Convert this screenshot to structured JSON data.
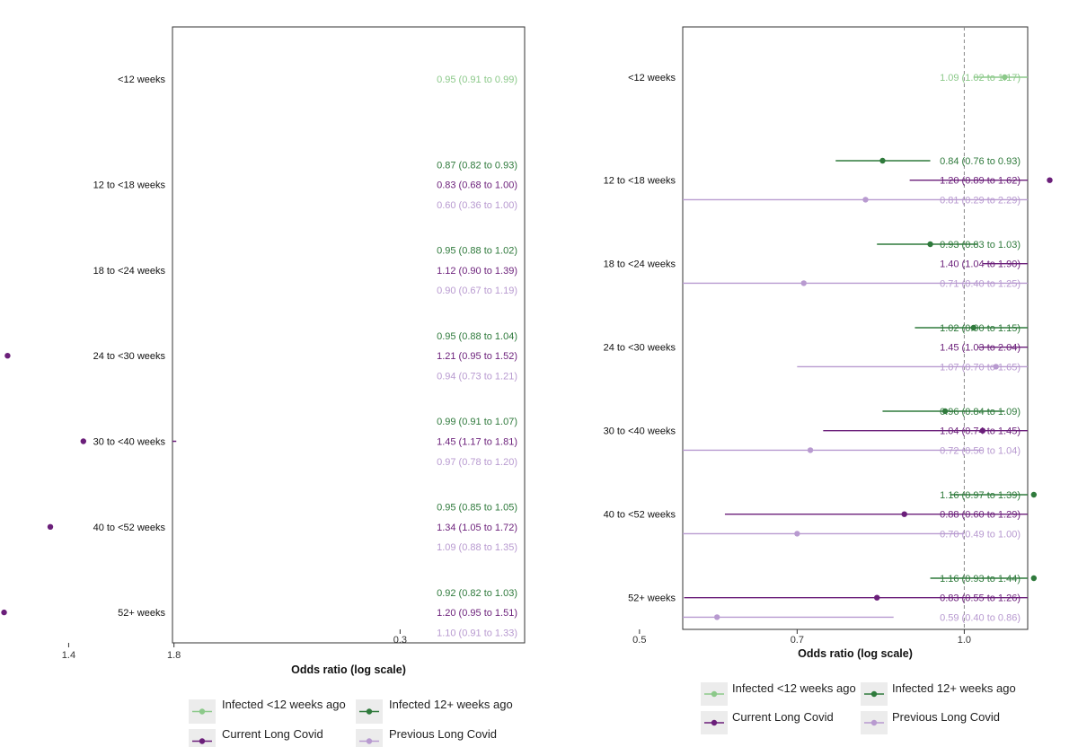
{
  "colors": {
    "Infected <12 weeks ago": "#8cc98a",
    "Infected 12+ weeks ago": "#2f7a3c",
    "Current Long Covid": "#6b1f7a",
    "Previous Long Covid": "#b89ad0"
  },
  "legend": {
    "items": [
      "Infected <12 weeks ago",
      "Infected 12+ weeks ago",
      "Current Long Covid",
      "Previous Long Covid"
    ]
  },
  "chart_data": [
    {
      "type": "forest",
      "xlabel": "Odds ratio (log scale)",
      "log_scale": true,
      "reference_line": 1.0,
      "xlim": [
        0.33,
        2.1
      ],
      "xticks": [
        "0.4",
        "0.6",
        "0.8",
        "1.0",
        "1.4",
        "1.8"
      ],
      "groups": [
        {
          "label": "<12 weeks",
          "rows": [
            {
              "series": "Infected <12 weeks ago",
              "est": 0.95,
              "lo": 0.91,
              "hi": 0.99,
              "text": "0.95 (0.91 to 0.99)"
            }
          ]
        },
        {
          "label": "12 to <18 weeks",
          "rows": [
            {
              "series": "Infected 12+ weeks ago",
              "est": 0.87,
              "lo": 0.82,
              "hi": 0.93,
              "text": "0.87 (0.82 to 0.93)"
            },
            {
              "series": "Current Long Covid",
              "est": 0.83,
              "lo": 0.68,
              "hi": 1.0,
              "text": "0.83 (0.68 to 1.00)"
            },
            {
              "series": "Previous Long Covid",
              "est": 0.6,
              "lo": 0.36,
              "hi": 1.0,
              "text": "0.60 (0.36 to 1.00)"
            }
          ]
        },
        {
          "label": "18 to <24 weeks",
          "rows": [
            {
              "series": "Infected 12+ weeks ago",
              "est": 0.95,
              "lo": 0.88,
              "hi": 1.02,
              "text": "0.95 (0.88 to 1.02)"
            },
            {
              "series": "Current Long Covid",
              "est": 1.12,
              "lo": 0.9,
              "hi": 1.39,
              "text": "1.12 (0.90 to 1.39)"
            },
            {
              "series": "Previous Long Covid",
              "est": 0.9,
              "lo": 0.67,
              "hi": 1.19,
              "text": "0.90 (0.67 to 1.19)"
            }
          ]
        },
        {
          "label": "24 to <30 weeks",
          "rows": [
            {
              "series": "Infected 12+ weeks ago",
              "est": 0.95,
              "lo": 0.88,
              "hi": 1.04,
              "text": "0.95 (0.88 to 1.04)"
            },
            {
              "series": "Current Long Covid",
              "est": 1.21,
              "lo": 0.95,
              "hi": 1.52,
              "text": "1.21 (0.95 to 1.52)"
            },
            {
              "series": "Previous Long Covid",
              "est": 0.94,
              "lo": 0.73,
              "hi": 1.21,
              "text": "0.94 (0.73 to 1.21)"
            }
          ]
        },
        {
          "label": "30 to <40 weeks",
          "rows": [
            {
              "series": "Infected 12+ weeks ago",
              "est": 0.99,
              "lo": 0.91,
              "hi": 1.07,
              "text": "0.99 (0.91 to 1.07)"
            },
            {
              "series": "Current Long Covid",
              "est": 1.45,
              "lo": 1.17,
              "hi": 1.81,
              "text": "1.45 (1.17 to 1.81)"
            },
            {
              "series": "Previous Long Covid",
              "est": 0.97,
              "lo": 0.78,
              "hi": 1.2,
              "text": "0.97 (0.78 to 1.20)"
            }
          ]
        },
        {
          "label": "40 to <52 weeks",
          "rows": [
            {
              "series": "Infected 12+ weeks ago",
              "est": 0.95,
              "lo": 0.85,
              "hi": 1.05,
              "text": "0.95 (0.85 to 1.05)"
            },
            {
              "series": "Current Long Covid",
              "est": 1.34,
              "lo": 1.05,
              "hi": 1.72,
              "text": "1.34 (1.05 to 1.72)"
            },
            {
              "series": "Previous Long Covid",
              "est": 1.09,
              "lo": 0.88,
              "hi": 1.35,
              "text": "1.09 (0.88 to 1.35)"
            }
          ]
        },
        {
          "label": "52+ weeks",
          "rows": [
            {
              "series": "Infected 12+ weeks ago",
              "est": 0.92,
              "lo": 0.82,
              "hi": 1.03,
              "text": "0.92 (0.82 to 1.03)"
            },
            {
              "series": "Current Long Covid",
              "est": 1.2,
              "lo": 0.95,
              "hi": 1.51,
              "text": "1.20 (0.95 to 1.51)"
            },
            {
              "series": "Previous Long Covid",
              "est": 1.1,
              "lo": 0.91,
              "hi": 1.33,
              "text": "1.10 (0.91 to 1.33)"
            }
          ]
        }
      ]
    },
    {
      "type": "forest",
      "xlabel": "Odds ratio (log scale)",
      "log_scale": true,
      "reference_line": 1.0,
      "xlim": [
        0.28,
        2.5
      ],
      "xticks": [
        "0.3",
        "0.5",
        "0.7",
        "1.0",
        "1.6",
        "2.3"
      ],
      "groups": [
        {
          "label": "<12 weeks",
          "rows": [
            {
              "series": "Infected <12 weeks ago",
              "est": 1.09,
              "lo": 1.02,
              "hi": 1.17,
              "text": "1.09 (1.02 to 1.17)"
            }
          ]
        },
        {
          "label": "12 to <18 weeks",
          "rows": [
            {
              "series": "Infected 12+ weeks ago",
              "est": 0.84,
              "lo": 0.76,
              "hi": 0.93,
              "text": "0.84 (0.76 to 0.93)"
            },
            {
              "series": "Current Long Covid",
              "est": 1.2,
              "lo": 0.89,
              "hi": 1.62,
              "text": "1.20 (0.89 to 1.62)"
            },
            {
              "series": "Previous Long Covid",
              "est": 0.81,
              "lo": 0.29,
              "hi": 2.29,
              "text": "0.81 (0.29 to 2.29)"
            }
          ]
        },
        {
          "label": "18 to <24 weeks",
          "rows": [
            {
              "series": "Infected 12+ weeks ago",
              "est": 0.93,
              "lo": 0.83,
              "hi": 1.03,
              "text": "0.93 (0.83 to 1.03)"
            },
            {
              "series": "Current Long Covid",
              "est": 1.4,
              "lo": 1.04,
              "hi": 1.9,
              "text": "1.40 (1.04 to 1.90)"
            },
            {
              "series": "Previous Long Covid",
              "est": 0.71,
              "lo": 0.4,
              "hi": 1.25,
              "text": "0.71 (0.40 to 1.25)"
            }
          ]
        },
        {
          "label": "24 to <30 weeks",
          "rows": [
            {
              "series": "Infected 12+ weeks ago",
              "est": 1.02,
              "lo": 0.9,
              "hi": 1.15,
              "text": "1.02 (0.90 to 1.15)"
            },
            {
              "series": "Current Long Covid",
              "est": 1.45,
              "lo": 1.03,
              "hi": 2.04,
              "text": "1.45 (1.03 to 2.04)"
            },
            {
              "series": "Previous Long Covid",
              "est": 1.07,
              "lo": 0.7,
              "hi": 1.65,
              "text": "1.07 (0.70 to 1.65)"
            }
          ]
        },
        {
          "label": "30 to <40 weeks",
          "rows": [
            {
              "series": "Infected 12+ weeks ago",
              "est": 0.96,
              "lo": 0.84,
              "hi": 1.09,
              "text": "0.96 (0.84 to 1.09)"
            },
            {
              "series": "Current Long Covid",
              "est": 1.04,
              "lo": 0.74,
              "hi": 1.45,
              "text": "1.04 (0.74 to 1.45)"
            },
            {
              "series": "Previous Long Covid",
              "est": 0.72,
              "lo": 0.5,
              "hi": 1.04,
              "text": "0.72 (0.50 to 1.04)"
            }
          ]
        },
        {
          "label": "40 to <52 weeks",
          "rows": [
            {
              "series": "Infected 12+ weeks ago",
              "est": 1.16,
              "lo": 0.97,
              "hi": 1.39,
              "text": "1.16 (0.97 to 1.39)"
            },
            {
              "series": "Current Long Covid",
              "est": 0.88,
              "lo": 0.6,
              "hi": 1.29,
              "text": "0.88 (0.60 to 1.29)"
            },
            {
              "series": "Previous Long Covid",
              "est": 0.7,
              "lo": 0.49,
              "hi": 1.0,
              "text": "0.70 (0.49 to 1.00)"
            }
          ]
        },
        {
          "label": "52+ weeks",
          "rows": [
            {
              "series": "Infected 12+ weeks ago",
              "est": 1.16,
              "lo": 0.93,
              "hi": 1.44,
              "text": "1.16 (0.93 to 1.44)"
            },
            {
              "series": "Current Long Covid",
              "est": 0.83,
              "lo": 0.55,
              "hi": 1.26,
              "text": "0.83 (0.55 to 1.26)"
            },
            {
              "series": "Previous Long Covid",
              "est": 0.59,
              "lo": 0.4,
              "hi": 0.86,
              "text": "0.59 (0.40 to 0.86)"
            }
          ]
        }
      ]
    }
  ]
}
